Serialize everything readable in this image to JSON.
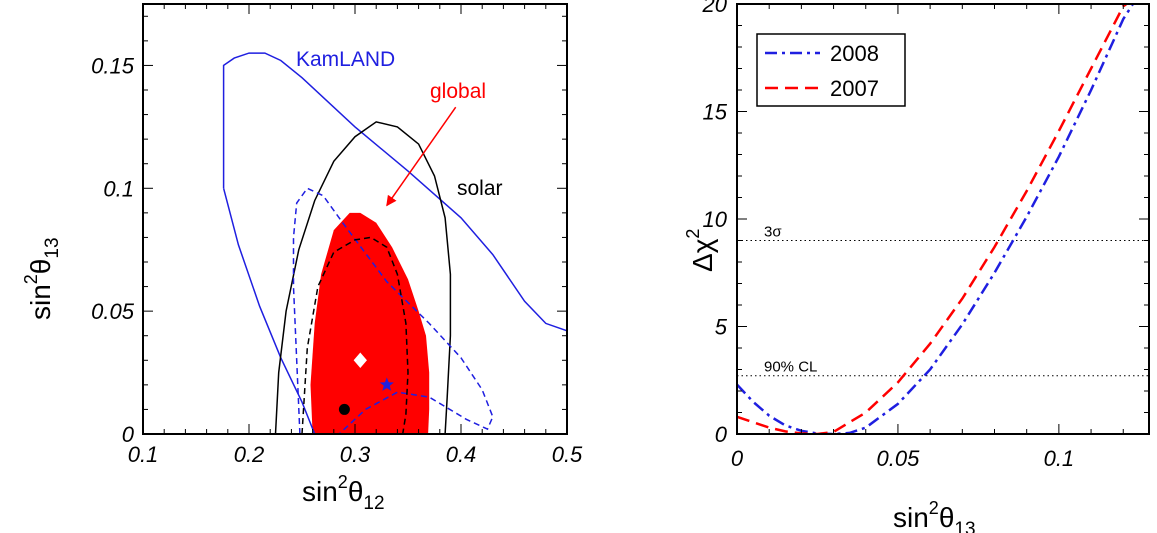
{
  "chart_data": [
    {
      "type": "scatter",
      "subtype": "confidence-contours",
      "xlabel": "sin²θ₁₂",
      "ylabel": "sin²θ₁₃",
      "xlim": [
        0.1,
        0.5
      ],
      "ylim": [
        0,
        0.175
      ],
      "x_ticks": [
        "0.1",
        "0.2",
        "0.3",
        "0.4",
        "0.5"
      ],
      "y_ticks": [
        "0",
        "0.05",
        "0.1",
        "0.15"
      ],
      "colors": {
        "kamland": "#1f1fe0",
        "solar": "#000000",
        "global": "#ff0000"
      },
      "annotations": {
        "kamland": "KamLAND",
        "global": "global",
        "solar": "solar"
      },
      "regions": [
        {
          "name": "KamLAND",
          "style": "solid",
          "color": "#1f1fe0",
          "points": [
            [
              0.176,
              0.1
            ],
            [
              0.176,
              0.15
            ],
            [
              0.186,
              0.153
            ],
            [
              0.2,
              0.155
            ],
            [
              0.215,
              0.155
            ],
            [
              0.23,
              0.152
            ],
            [
              0.25,
              0.145
            ],
            [
              0.3,
              0.125
            ],
            [
              0.35,
              0.107
            ],
            [
              0.4,
              0.088
            ],
            [
              0.43,
              0.073
            ],
            [
              0.46,
              0.054
            ],
            [
              0.48,
              0.045
            ],
            [
              0.5,
              0.042
            ]
          ]
        },
        {
          "name": "KamLAND-lower",
          "style": "solid",
          "color": "#1f1fe0",
          "points": [
            [
              0.176,
              0.1
            ],
            [
              0.19,
              0.077
            ],
            [
              0.21,
              0.052
            ],
            [
              0.23,
              0.031
            ],
            [
              0.25,
              0.013
            ],
            [
              0.262,
              0
            ]
          ]
        },
        {
          "name": "solar",
          "style": "solid",
          "color": "#000000",
          "points": [
            [
              0.225,
              0
            ],
            [
              0.228,
              0.025
            ],
            [
              0.235,
              0.05
            ],
            [
              0.247,
              0.075
            ],
            [
              0.262,
              0.095
            ],
            [
              0.28,
              0.111
            ],
            [
              0.3,
              0.121
            ],
            [
              0.32,
              0.127
            ],
            [
              0.34,
              0.125
            ],
            [
              0.36,
              0.118
            ],
            [
              0.375,
              0.105
            ],
            [
              0.385,
              0.088
            ],
            [
              0.39,
              0.065
            ],
            [
              0.39,
              0.04
            ],
            [
              0.387,
              0.015
            ],
            [
              0.385,
              0
            ]
          ]
        },
        {
          "name": "KamLAND-dashed",
          "style": "dashed",
          "color": "#1f1fe0",
          "points": [
            [
              0.248,
              0
            ],
            [
              0.245,
              0.03
            ],
            [
              0.242,
              0.06
            ],
            [
              0.242,
              0.08
            ],
            [
              0.245,
              0.094
            ],
            [
              0.255,
              0.1
            ],
            [
              0.27,
              0.097
            ],
            [
              0.29,
              0.085
            ],
            [
              0.33,
              0.062
            ],
            [
              0.37,
              0.045
            ],
            [
              0.4,
              0.031
            ],
            [
              0.42,
              0.018
            ],
            [
              0.43,
              0.007
            ],
            [
              0.425,
              0.002
            ],
            [
              0.405,
              0.006
            ],
            [
              0.37,
              0.015
            ],
            [
              0.34,
              0.017
            ],
            [
              0.31,
              0.01
            ],
            [
              0.285,
              0
            ]
          ]
        },
        {
          "name": "solar-dashed",
          "style": "dashed",
          "color": "#000000",
          "points": [
            [
              0.25,
              0
            ],
            [
              0.255,
              0.035
            ],
            [
              0.265,
              0.06
            ],
            [
              0.28,
              0.074
            ],
            [
              0.3,
              0.079
            ],
            [
              0.315,
              0.08
            ],
            [
              0.33,
              0.076
            ],
            [
              0.34,
              0.065
            ],
            [
              0.348,
              0.045
            ],
            [
              0.35,
              0.025
            ],
            [
              0.348,
              0.008
            ],
            [
              0.345,
              0
            ]
          ]
        },
        {
          "name": "global",
          "style": "filled",
          "color": "#ff0000",
          "points": [
            [
              0.26,
              0
            ],
            [
              0.258,
              0.02
            ],
            [
              0.262,
              0.045
            ],
            [
              0.268,
              0.065
            ],
            [
              0.28,
              0.083
            ],
            [
              0.295,
              0.09
            ],
            [
              0.305,
              0.09
            ],
            [
              0.32,
              0.086
            ],
            [
              0.335,
              0.076
            ],
            [
              0.35,
              0.063
            ],
            [
              0.36,
              0.05
            ],
            [
              0.367,
              0.04
            ],
            [
              0.37,
              0.025
            ],
            [
              0.37,
              0.01
            ],
            [
              0.369,
              0
            ]
          ]
        }
      ],
      "markers": [
        {
          "name": "best-fit-global",
          "shape": "diamond",
          "color": "#ffffff",
          "x": 0.305,
          "y": 0.03
        },
        {
          "name": "best-fit-kamland",
          "shape": "star",
          "color": "#1f1fe0",
          "x": 0.33,
          "y": 0.02
        },
        {
          "name": "best-fit-solar",
          "shape": "circle",
          "color": "#000000",
          "x": 0.29,
          "y": 0.01
        }
      ],
      "arrow": {
        "from": [
          0.395,
          0.133
        ],
        "to": [
          0.33,
          0.093
        ]
      }
    },
    {
      "type": "line",
      "xlabel": "sin²θ₁₃",
      "ylabel": "Δχ²",
      "xlim": [
        0,
        0.128
      ],
      "ylim": [
        0,
        20
      ],
      "x_ticks": [
        "0",
        "0.05",
        "0.1"
      ],
      "y_ticks": [
        "0",
        "5",
        "10",
        "15",
        "20"
      ],
      "legend": {
        "position": "top-left",
        "entries": [
          "2008",
          "2007"
        ]
      },
      "reference_lines": [
        {
          "label": "3σ",
          "y": 9
        },
        {
          "label": "90% CL",
          "y": 2.71
        }
      ],
      "series": [
        {
          "name": "2008",
          "color": "#1f1fe0",
          "style": "dash-dot",
          "x": [
            0,
            0.005,
            0.01,
            0.015,
            0.02,
            0.025,
            0.03,
            0.035,
            0.04,
            0.05,
            0.06,
            0.07,
            0.08,
            0.09,
            0.1,
            0.11,
            0.12,
            0.123
          ],
          "y": [
            2.3,
            1.5,
            0.85,
            0.4,
            0.15,
            0.02,
            0,
            0.05,
            0.3,
            1.4,
            3.0,
            5.1,
            7.5,
            10.1,
            12.9,
            16.0,
            19.3,
            20
          ]
        },
        {
          "name": "2007",
          "color": "#ff0000",
          "style": "dashed",
          "x": [
            0,
            0.005,
            0.01,
            0.015,
            0.02,
            0.025,
            0.03,
            0.04,
            0.05,
            0.06,
            0.07,
            0.08,
            0.09,
            0.1,
            0.11,
            0.12,
            0.121
          ],
          "y": [
            0.8,
            0.55,
            0.3,
            0.12,
            0.03,
            0,
            0.1,
            1.0,
            2.4,
            4.2,
            6.3,
            8.7,
            11.3,
            14.1,
            17.0,
            19.9,
            20
          ]
        }
      ]
    }
  ]
}
